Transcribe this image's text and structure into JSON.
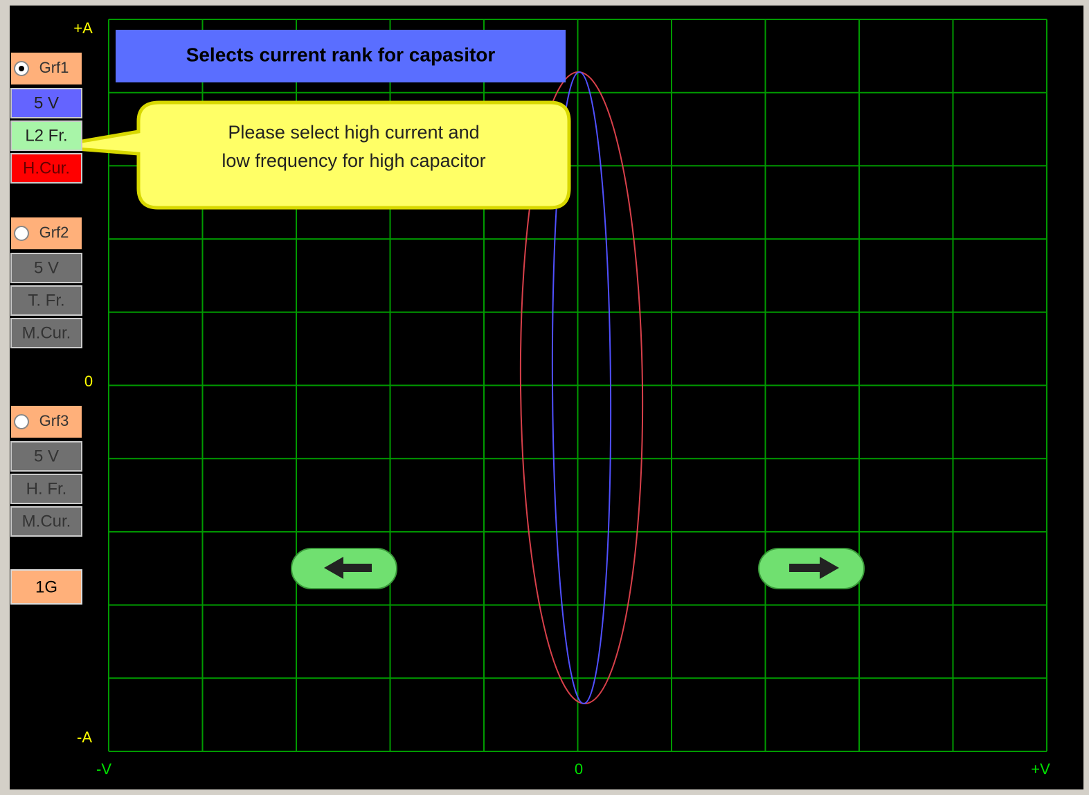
{
  "axis": {
    "y_top": "+A",
    "y_mid": "0",
    "y_bottom": "-A",
    "x_left": "-V",
    "x_mid": "0",
    "x_right": "+V"
  },
  "banner": "Selects current rank for capasitor",
  "callout": {
    "line1": "Please select high current and",
    "line2": "low frequency for high capacitor"
  },
  "groups": [
    {
      "name": "Grf1",
      "voltage": "5 V",
      "frequency": "L2 Fr.",
      "current": "H.Cur."
    },
    {
      "name": "Grf2",
      "voltage": "5 V",
      "frequency": "T. Fr.",
      "current": "M.Cur."
    },
    {
      "name": "Grf3",
      "voltage": "5 V",
      "frequency": "H. Fr.",
      "current": "M.Cur."
    }
  ],
  "graphs_button": "1G"
}
